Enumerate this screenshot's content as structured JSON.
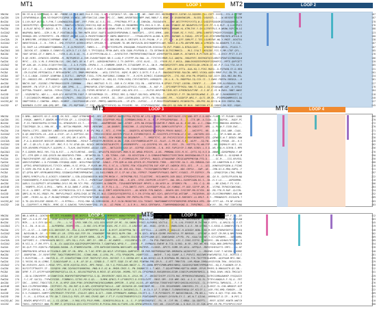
{
  "colors": {
    "loop1": "#f5b800",
    "loop2": "#1f4e79",
    "loop3": "#e8141b",
    "loop4": "#f08a30",
    "loop5": "#8cc152",
    "loop6": "#000000",
    "loop1_shade": "#fbe7a6",
    "loop2_shade": "#bcd3ea",
    "loop3_shade": "#f6b3b3",
    "loop4_shade": "#f9d8bf",
    "loop5_shade": "#d9ecc6",
    "loop6_shade": "#d0d0d0",
    "mt_shade": "#c9d9ee"
  },
  "blocks": [
    {
      "loops": [
        {
          "label": "LOOP 1"
        },
        {
          "label": "LOOP 2"
        }
      ],
      "mts": [
        "MT1",
        "MT2"
      ],
      "species": [
        "MtCDA",
        "CgCDA",
        "BcCDA",
        "CoCDA1",
        "PbCDA",
        "ScCDA2",
        "ClCDA",
        "CmCDA",
        "ScCDA1",
        "SsCDA",
        "EpCDA1",
        "RaCDA",
        "PcCDA",
        "FpCDA",
        "ClCDA2",
        "CsCDA",
        "PrCDA",
        "CfCDA",
        "PaCDA",
        "AnCDA",
        "ArCE4B",
        "NodB",
        "ScCOD",
        "SsCOD",
        "VcCOD_AC",
        "VcCOD"
      ],
      "start": [
        "129",
        "120",
        "120",
        "119",
        "130",
        "66",
        "123",
        "29",
        "67",
        "41",
        "105",
        "56",
        "97",
        "42",
        "56",
        "42",
        "99",
        "187",
        "137",
        "36",
        "154",
        "34",
        "127",
        "89",
        "33",
        "67"
      ],
      "end": [
        "167",
        "187",
        "178",
        "176",
        "188",
        "123",
        "180",
        "138",
        "187",
        "187",
        "185",
        "176",
        "186",
        "120",
        "185",
        "131",
        "201",
        "134",
        "181",
        "227",
        "178",
        "184",
        "218",
        "240",
        "127",
        "245"
      ]
    },
    {
      "loops": [
        {
          "label": "LOOP 3"
        },
        {
          "label": "LOOP 4"
        }
      ],
      "mts": [
        "MT3",
        "MT4"
      ],
      "species": [
        "MtCDA",
        "CgCDA",
        "BcCDA",
        "CoCDA1",
        "PbCDA",
        "ScCDA2",
        "ClCDA",
        "CmCDA",
        "ScCDA1",
        "SsCDA",
        "EpCDA1",
        "RaCDA",
        "PcCDA",
        "FpCDA",
        "ClCDA2",
        "CsCDA",
        "PrCDA",
        "CfCDA",
        "PaCDA",
        "AnCDA",
        "ArCE4B",
        "NodB",
        "ScCOD",
        "SsCOD",
        "VcCOD_AC",
        "VcCOD"
      ],
      "start": [
        "220",
        "191",
        "185",
        "214",
        "216",
        "179",
        "183",
        "188",
        "128",
        "160",
        "134",
        "83",
        "124",
        "142",
        "188",
        "137",
        "182",
        "134",
        "128",
        "251",
        "235",
        "175",
        "188",
        "237",
        "242",
        "246"
      ],
      "end": [
        "268",
        "270",
        "272",
        "270",
        "271",
        "272",
        "230",
        "228",
        "262",
        "256",
        "276",
        "290",
        "250",
        "268",
        "210",
        "311",
        "297",
        "222",
        "210",
        "206",
        "284",
        "234",
        "252",
        "289",
        "283",
        "283"
      ]
    },
    {
      "loops": [
        {
          "label": "LOOP 5"
        },
        {
          "label": "LOOP 6"
        }
      ],
      "mts": [
        "MT5"
      ],
      "species": [
        "MtCDA",
        "CgCDA",
        "BcCDA",
        "CoCDA1",
        "PbCDA",
        "ScCDA2",
        "ClCDA",
        "CmCDA",
        "ScCDA1",
        "SsCDA",
        "EpCDA1",
        "RaCDA",
        "PcCDA",
        "FpCDA",
        "ClCDA2",
        "CsCDA",
        "PrCDA",
        "CfCDA",
        "PaCDA",
        "AnCDA",
        "ArCE4B",
        "NodB",
        "ScCOD",
        "SsCOD",
        "VcCOD_AC",
        "VcCOD"
      ],
      "start": [
        "269",
        "265",
        "271",
        "271",
        "272",
        "268",
        "273",
        "229",
        "263",
        "257",
        "277",
        "217",
        "251",
        "215",
        "274",
        "261",
        "180",
        "235",
        "270",
        "277",
        "209",
        "295",
        "254",
        "290",
        "284",
        "284"
      ],
      "end": [
        "312",
        "303",
        "345",
        "319",
        "348",
        "302",
        "309",
        "289",
        "354",
        "328",
        "340",
        "281",
        "299",
        "229",
        "356",
        "312",
        "341",
        "239",
        "316",
        "276",
        "345",
        "222",
        "269",
        "421",
        "410",
        "308"
      ]
    }
  ]
}
